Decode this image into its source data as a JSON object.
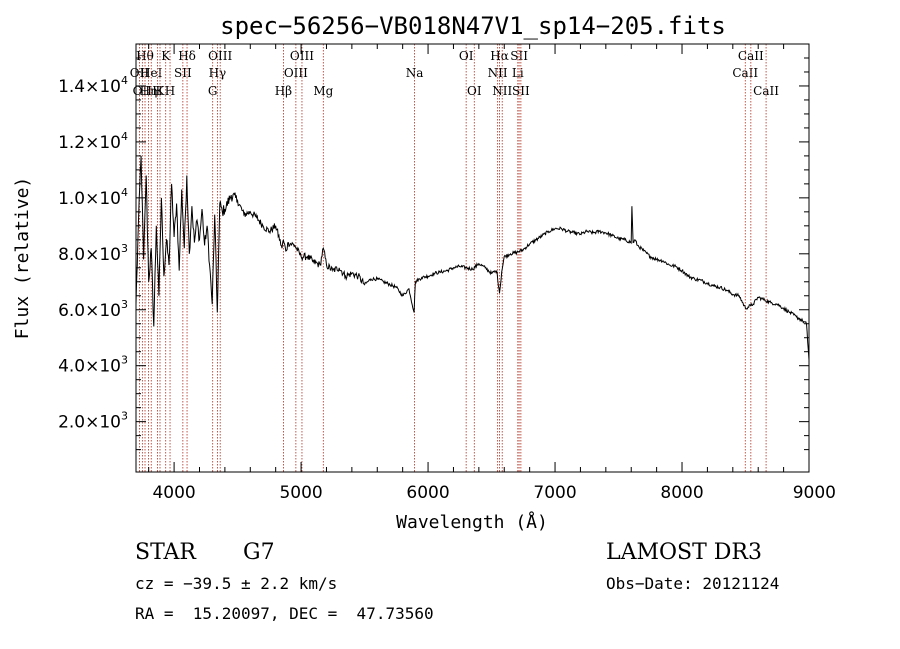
{
  "chart_data": {
    "type": "line",
    "title": "spec−56256−VB018N47V1_sp14−205.fits",
    "xlabel": "Wavelength (Å)",
    "ylabel": "Flux (relative)",
    "xlim": [
      3700,
      9000
    ],
    "ylim": [
      200,
      15500
    ],
    "grid": false,
    "x_ticks": [
      {
        "value": 4000,
        "label": "4000"
      },
      {
        "value": 5000,
        "label": "5000"
      },
      {
        "value": 6000,
        "label": "6000"
      },
      {
        "value": 7000,
        "label": "7000"
      },
      {
        "value": 8000,
        "label": "8000"
      },
      {
        "value": 9000,
        "label": "9000"
      }
    ],
    "y_ticks": [
      {
        "value": 2000,
        "mantissa": "2.0×10",
        "exp": "3"
      },
      {
        "value": 4000,
        "mantissa": "4.0×10",
        "exp": "3"
      },
      {
        "value": 6000,
        "mantissa": "6.0×10",
        "exp": "3"
      },
      {
        "value": 8000,
        "mantissa": "8.0×10",
        "exp": "3"
      },
      {
        "value": 10000,
        "mantissa": "1.0×10",
        "exp": "4"
      },
      {
        "value": 12000,
        "mantissa": "1.2×10",
        "exp": "4"
      },
      {
        "value": 14000,
        "mantissa": "1.4×10",
        "exp": "4"
      }
    ],
    "series": [
      {
        "name": "flux",
        "color": "#000000",
        "x": [
          3700,
          3720,
          3740,
          3760,
          3780,
          3800,
          3820,
          3840,
          3860,
          3880,
          3900,
          3920,
          3940,
          3960,
          3980,
          4000,
          4020,
          4040,
          4060,
          4080,
          4100,
          4120,
          4140,
          4160,
          4180,
          4200,
          4220,
          4240,
          4260,
          4280,
          4300,
          4320,
          4340,
          4360,
          4380,
          4400,
          4450,
          4500,
          4550,
          4600,
          4650,
          4700,
          4750,
          4800,
          4850,
          4860,
          4880,
          4900,
          4950,
          5000,
          5050,
          5100,
          5150,
          5175,
          5200,
          5250,
          5300,
          5350,
          5400,
          5450,
          5500,
          5550,
          5600,
          5650,
          5700,
          5750,
          5800,
          5850,
          5890,
          5900,
          5950,
          6000,
          6050,
          6100,
          6150,
          6200,
          6250,
          6300,
          6350,
          6400,
          6450,
          6500,
          6540,
          6563,
          6580,
          6600,
          6650,
          6700,
          6750,
          6800,
          6850,
          6900,
          6950,
          7000,
          7050,
          7100,
          7150,
          7200,
          7250,
          7300,
          7350,
          7400,
          7450,
          7500,
          7550,
          7600,
          7605,
          7615,
          7630,
          7650,
          7700,
          7750,
          7800,
          7850,
          7900,
          7950,
          8000,
          8050,
          8100,
          8150,
          8200,
          8250,
          8300,
          8350,
          8400,
          8450,
          8500,
          8540,
          8560,
          8600,
          8650,
          8700,
          8750,
          8800,
          8850,
          8900,
          8950,
          8980,
          9000
        ],
        "values": [
          6200,
          9200,
          11500,
          7800,
          10800,
          7000,
          8200,
          5400,
          9000,
          6500,
          10000,
          7200,
          8500,
          7600,
          10500,
          8600,
          9800,
          7400,
          10300,
          8200,
          10800,
          8000,
          9700,
          8400,
          9200,
          8500,
          9600,
          8300,
          9000,
          7600,
          6200,
          9400,
          5900,
          9800,
          9500,
          9600,
          10100,
          9900,
          9400,
          9500,
          9300,
          9000,
          8800,
          9000,
          8200,
          8500,
          8100,
          8400,
          8300,
          7900,
          7900,
          7700,
          7600,
          8200,
          7600,
          7400,
          7500,
          7200,
          7300,
          7200,
          6900,
          7100,
          7100,
          7000,
          6900,
          6800,
          6500,
          6750,
          5900,
          7000,
          7150,
          7200,
          7300,
          7350,
          7400,
          7500,
          7550,
          7500,
          7450,
          7650,
          7500,
          7300,
          7400,
          6600,
          7350,
          7900,
          8000,
          8050,
          8150,
          8350,
          8500,
          8650,
          8800,
          8900,
          8900,
          8800,
          8750,
          8700,
          8800,
          8750,
          8800,
          8750,
          8650,
          8550,
          8500,
          8400,
          9700,
          8400,
          8500,
          8300,
          8100,
          7900,
          7800,
          7750,
          7600,
          7550,
          7400,
          7200,
          7100,
          7050,
          6950,
          6850,
          6800,
          6700,
          6550,
          6500,
          6050,
          6150,
          6200,
          6450,
          6350,
          6250,
          6200,
          6050,
          5900,
          5750,
          5600,
          5500,
          4200
        ]
      }
    ],
    "lines": [
      {
        "wl": 3727,
        "row": 1,
        "label": "OII"
      },
      {
        "wl": 3750,
        "row": 2,
        "label": "OII"
      },
      {
        "wl": 3771,
        "row": 0,
        "label": "Hθ"
      },
      {
        "wl": 3798,
        "row": 2,
        "label": "Hη"
      },
      {
        "wl": 3820,
        "row": 1,
        "label": "HeI"
      },
      {
        "wl": 3869,
        "row": 2,
        "label": "H"
      },
      {
        "wl": 3889,
        "row": 2,
        "label": "K"
      },
      {
        "wl": 3934,
        "row": 0,
        "label": "K"
      },
      {
        "wl": 3968,
        "row": 2,
        "label": "H"
      },
      {
        "wl": 4069,
        "row": 1,
        "label": "SII"
      },
      {
        "wl": 4102,
        "row": 0,
        "label": "Hδ"
      },
      {
        "wl": 4304,
        "row": 2,
        "label": "G"
      },
      {
        "wl": 4341,
        "row": 1,
        "label": "Hγ"
      },
      {
        "wl": 4363,
        "row": 0,
        "label": "OIII"
      },
      {
        "wl": 4861,
        "row": 2,
        "label": "Hβ"
      },
      {
        "wl": 4959,
        "row": 1,
        "label": "OIII"
      },
      {
        "wl": 5007,
        "row": 0,
        "label": "OIII"
      },
      {
        "wl": 5175,
        "row": 2,
        "label": "Mg"
      },
      {
        "wl": 5894,
        "row": 1,
        "label": "Na"
      },
      {
        "wl": 6300,
        "row": 0,
        "label": "OI"
      },
      {
        "wl": 6364,
        "row": 2,
        "label": "OI"
      },
      {
        "wl": 6548,
        "row": 1,
        "label": "NII"
      },
      {
        "wl": 6563,
        "row": 0,
        "label": "Hα"
      },
      {
        "wl": 6584,
        "row": 2,
        "label": "NII"
      },
      {
        "wl": 6707,
        "row": 1,
        "label": "Li"
      },
      {
        "wl": 6717,
        "row": 0,
        "label": "SII"
      },
      {
        "wl": 6731,
        "row": 2,
        "label": "SII"
      },
      {
        "wl": 8498,
        "row": 1,
        "label": "CaII"
      },
      {
        "wl": 8542,
        "row": 0,
        "label": "CaII"
      },
      {
        "wl": 8662,
        "row": 2,
        "label": "CaII"
      }
    ]
  },
  "info": {
    "object_class": "STAR",
    "subclass": "G7",
    "survey": "LAMOST DR3",
    "cz": "cz = −39.5 ± 2.2 km/s",
    "obs_date": "Obs−Date: 20121124",
    "coords": "RA =  15.20097, DEC =  47.73560"
  },
  "colors": {
    "line_marker": "#b03020",
    "spectrum": "#000000",
    "axes": "#000000"
  }
}
